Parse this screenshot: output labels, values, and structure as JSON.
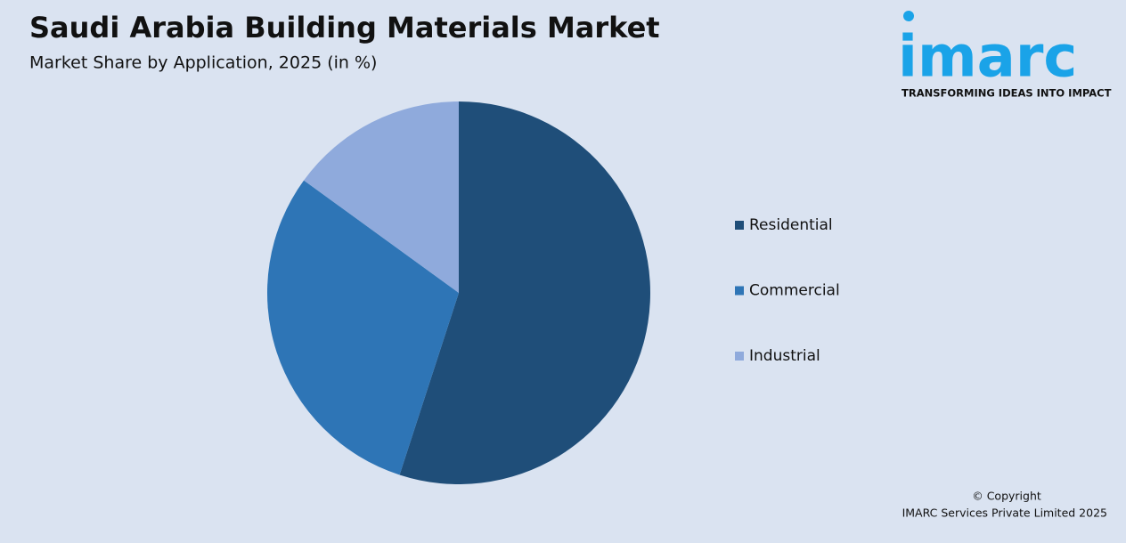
{
  "chart_data": {
    "type": "pie",
    "title": "Saudi Arabia Building Materials Market",
    "subtitle": "Market Share by Application, 2025 (in %)",
    "categories": [
      "Residential",
      "Commercial",
      "Industrial"
    ],
    "values": [
      55,
      30,
      15
    ],
    "colors": [
      "#1f4e79",
      "#2e75b6",
      "#8faadc"
    ],
    "legend": "right"
  },
  "logo": {
    "name": "imarc",
    "tagline": "TRANSFORMING IDEAS INTO IMPACT"
  },
  "footer": {
    "line1": "© Copyright",
    "line2": "IMARC Services Private Limited 2025"
  }
}
